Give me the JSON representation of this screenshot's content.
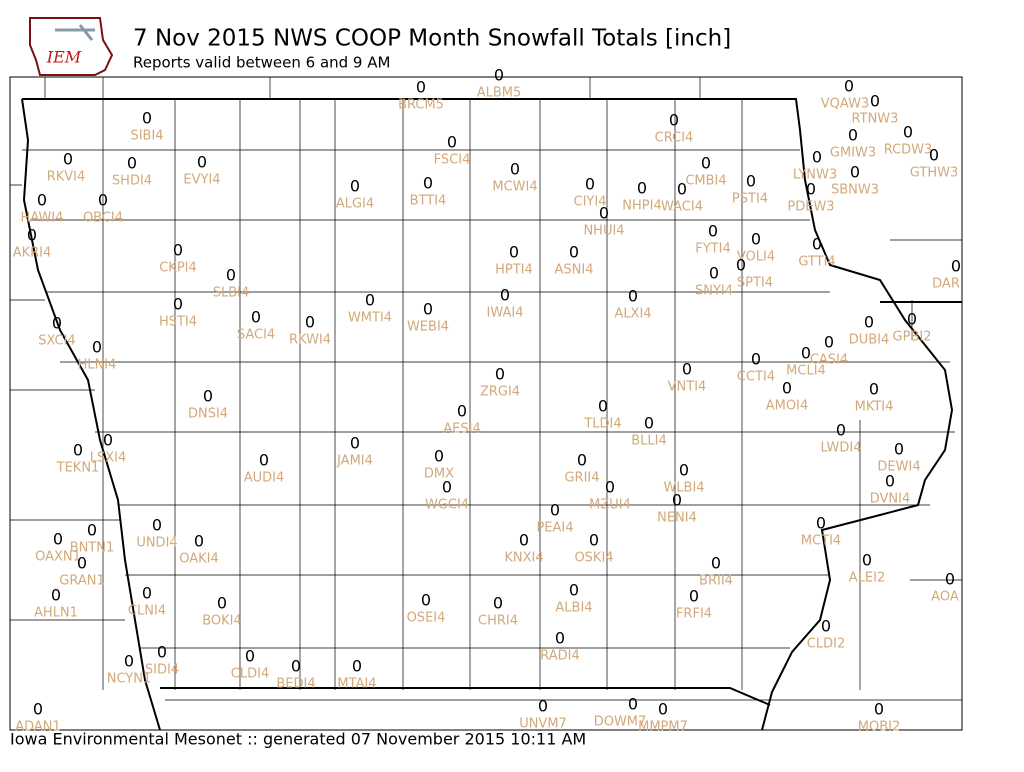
{
  "header": {
    "logo_text": "IEM",
    "title": "7 Nov 2015 NWS COOP Month Snowfall Totals [inch]",
    "subtitle": "Reports valid between 6 and 9 AM"
  },
  "stations": [
    {
      "id": "BRCM5",
      "value": 0
    },
    {
      "id": "ALBM5",
      "value": 0
    },
    {
      "id": "SIBI4",
      "value": 0
    },
    {
      "id": "CRCI4",
      "value": 0
    },
    {
      "id": "VQAW3",
      "value": 0
    },
    {
      "id": "RTNW3",
      "value": 0
    },
    {
      "id": "GMIW3",
      "value": 0
    },
    {
      "id": "RCDW3",
      "value": 0
    },
    {
      "id": "GTHW3",
      "value": 0
    },
    {
      "id": "FSCI4",
      "value": 0
    },
    {
      "id": "RKVI4",
      "value": 0
    },
    {
      "id": "SHDI4",
      "value": 0
    },
    {
      "id": "EVYI4",
      "value": 0
    },
    {
      "id": "MCWI4",
      "value": 0
    },
    {
      "id": "CMBI4",
      "value": 0
    },
    {
      "id": "LYNW3",
      "value": 0
    },
    {
      "id": "SBNW3",
      "value": 0
    },
    {
      "id": "ALGI4",
      "value": 0
    },
    {
      "id": "BTTI4",
      "value": 0
    },
    {
      "id": "CIYI4",
      "value": 0
    },
    {
      "id": "NHPI4",
      "value": 0
    },
    {
      "id": "WACI4",
      "value": 0
    },
    {
      "id": "PSTI4",
      "value": 0
    },
    {
      "id": "PDEW3",
      "value": 0
    },
    {
      "id": "HAWI4",
      "value": 0
    },
    {
      "id": "OBCI4",
      "value": 0
    },
    {
      "id": "NHUI4",
      "value": 0
    },
    {
      "id": "AKRI4",
      "value": 0
    },
    {
      "id": "FYTI4",
      "value": 0
    },
    {
      "id": "VOLI4",
      "value": 0
    },
    {
      "id": "GTTI4",
      "value": 0
    },
    {
      "id": "CKPI4",
      "value": 0
    },
    {
      "id": "HPTI4",
      "value": 0
    },
    {
      "id": "ASNI4",
      "value": 0
    },
    {
      "id": "DAR",
      "value": 0
    },
    {
      "id": "SLBI4",
      "value": 0
    },
    {
      "id": "SNYI4",
      "value": 0
    },
    {
      "id": "SPTI4",
      "value": 0
    },
    {
      "id": "IWAI4",
      "value": 0
    },
    {
      "id": "ALXI4",
      "value": 0
    },
    {
      "id": "HSTI4",
      "value": 0
    },
    {
      "id": "WMTI4",
      "value": 0
    },
    {
      "id": "WEBI4",
      "value": 0
    },
    {
      "id": "SACI4",
      "value": 0
    },
    {
      "id": "RKWI4",
      "value": 0
    },
    {
      "id": "SXCI4",
      "value": 0
    },
    {
      "id": "DUBI4",
      "value": 0
    },
    {
      "id": "GPBI2",
      "value": 0
    },
    {
      "id": "HLNI4",
      "value": 0
    },
    {
      "id": "CASI4",
      "value": 0
    },
    {
      "id": "MCLI4",
      "value": 0
    },
    {
      "id": "CCTI4",
      "value": 0
    },
    {
      "id": "VNTI4",
      "value": 0
    },
    {
      "id": "ZRGI4",
      "value": 0
    },
    {
      "id": "AMOI4",
      "value": 0
    },
    {
      "id": "MKTI4",
      "value": 0
    },
    {
      "id": "DNSI4",
      "value": 0
    },
    {
      "id": "TLDI4",
      "value": 0
    },
    {
      "id": "AESI4",
      "value": 0
    },
    {
      "id": "BLLI4",
      "value": 0
    },
    {
      "id": "LWDI4",
      "value": 0
    },
    {
      "id": "LSXI4",
      "value": 0
    },
    {
      "id": "JAMI4",
      "value": 0
    },
    {
      "id": "TEKN1",
      "value": 0
    },
    {
      "id": "DEWI4",
      "value": 0
    },
    {
      "id": "AUDI4",
      "value": 0
    },
    {
      "id": "DMX",
      "value": 0
    },
    {
      "id": "GRII4",
      "value": 0
    },
    {
      "id": "WLBI4",
      "value": 0
    },
    {
      "id": "DVNI4",
      "value": 0
    },
    {
      "id": "WGCI4",
      "value": 0
    },
    {
      "id": "MZUI4",
      "value": 0
    },
    {
      "id": "NENI4",
      "value": 0
    },
    {
      "id": "PEAI4",
      "value": 0
    },
    {
      "id": "MCTI4",
      "value": 0
    },
    {
      "id": "UNDI4",
      "value": 0
    },
    {
      "id": "BNTN1",
      "value": 0
    },
    {
      "id": "OAKI4",
      "value": 0
    },
    {
      "id": "OAXN1",
      "value": 0
    },
    {
      "id": "KNXI4",
      "value": 0
    },
    {
      "id": "OSKI4",
      "value": 0
    },
    {
      "id": "GRAN1",
      "value": 0
    },
    {
      "id": "BRII4",
      "value": 0
    },
    {
      "id": "ALEI2",
      "value": 0
    },
    {
      "id": "AOA",
      "value": 0
    },
    {
      "id": "ALBI4",
      "value": 0
    },
    {
      "id": "CLNI4",
      "value": 0
    },
    {
      "id": "AHLN1",
      "value": 0
    },
    {
      "id": "FRFI4",
      "value": 0
    },
    {
      "id": "BOKI4",
      "value": 0
    },
    {
      "id": "OSEI4",
      "value": 0
    },
    {
      "id": "CHRI4",
      "value": 0
    },
    {
      "id": "CLDI2",
      "value": 0
    },
    {
      "id": "RADI4",
      "value": 0
    },
    {
      "id": "SIDI4",
      "value": 0
    },
    {
      "id": "NCYN1",
      "value": 0
    },
    {
      "id": "CLDI4",
      "value": 0
    },
    {
      "id": "BEDI4",
      "value": 0
    },
    {
      "id": "MTAI4",
      "value": 0
    },
    {
      "id": "UNVM7",
      "value": 0
    },
    {
      "id": "DOWM7",
      "value": 0
    },
    {
      "id": "MMPM7",
      "value": 0
    },
    {
      "id": "MOBI2",
      "value": 0
    },
    {
      "id": "ADAN1",
      "value": 0
    }
  ],
  "footer": "Iowa Environmental Mesonet :: generated 07 November 2015 10:11 AM"
}
